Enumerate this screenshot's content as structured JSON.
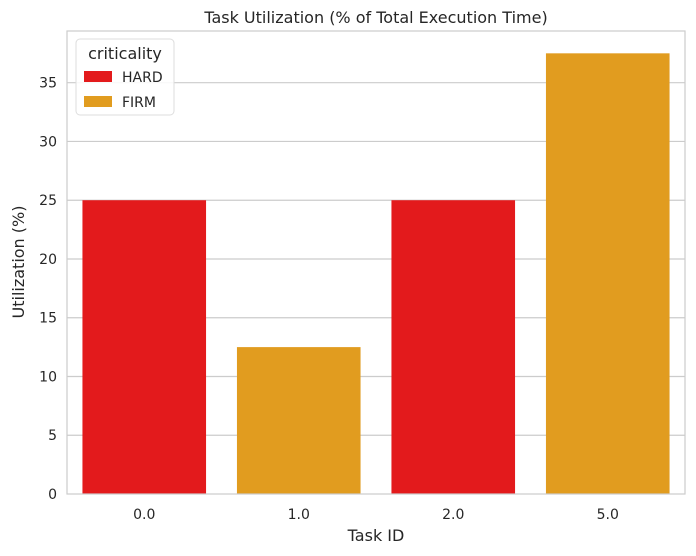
{
  "chart_data": {
    "type": "bar",
    "title": "Task Utilization (% of Total Execution Time)",
    "xlabel": "Task ID",
    "ylabel": "Utilization (%)",
    "categories": [
      "0.0",
      "1.0",
      "2.0",
      "5.0"
    ],
    "values": [
      25,
      12.5,
      25,
      37.5
    ],
    "bar_criticality": [
      "HARD",
      "FIRM",
      "HARD",
      "FIRM"
    ],
    "ylim": [
      0,
      39.4
    ],
    "yticks": [
      "0",
      "5",
      "10",
      "15",
      "20",
      "25",
      "30",
      "35"
    ],
    "grid": "horizontal",
    "legend": {
      "title": "criticality",
      "placement": "top-left",
      "entries": [
        {
          "label": "HARD",
          "color": "#e31a1c"
        },
        {
          "label": "FIRM",
          "color": "#e19c1f"
        }
      ]
    },
    "colors": {
      "HARD": "#e31a1c",
      "FIRM": "#e19c1f"
    }
  }
}
